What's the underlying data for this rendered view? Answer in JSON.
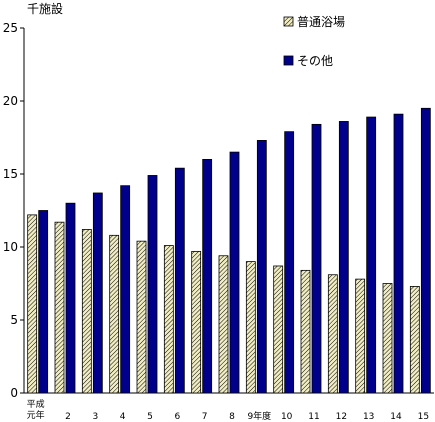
{
  "chart_data": {
    "type": "bar",
    "unit_label": "千施設",
    "categories": [
      [
        "平成",
        "元年"
      ],
      [
        "2"
      ],
      [
        "3"
      ],
      [
        "4"
      ],
      [
        "5"
      ],
      [
        "6"
      ],
      [
        "7"
      ],
      [
        "8"
      ],
      [
        "9年度"
      ],
      [
        "10"
      ],
      [
        "11"
      ],
      [
        "12"
      ],
      [
        "13"
      ],
      [
        "14"
      ],
      [
        "15"
      ]
    ],
    "series": [
      {
        "name": "普通浴場",
        "pattern": "diagonal-hatch",
        "color": "#e8e4b0",
        "stroke": "#000000",
        "values": [
          12.2,
          11.7,
          11.2,
          10.8,
          10.4,
          10.1,
          9.7,
          9.4,
          9.0,
          8.7,
          8.4,
          8.1,
          7.8,
          7.5,
          7.3
        ]
      },
      {
        "name": "その他",
        "pattern": "solid",
        "color": "#00008b",
        "stroke": "#000000",
        "values": [
          12.5,
          13.0,
          13.7,
          14.2,
          14.9,
          15.4,
          16.0,
          16.5,
          17.3,
          17.9,
          18.4,
          18.6,
          18.9,
          19.1,
          19.5
        ]
      }
    ],
    "ylim": [
      0,
      25
    ],
    "yticks": [
      0,
      5,
      10,
      15,
      20,
      25
    ],
    "grid": false,
    "legend": "top-right"
  }
}
